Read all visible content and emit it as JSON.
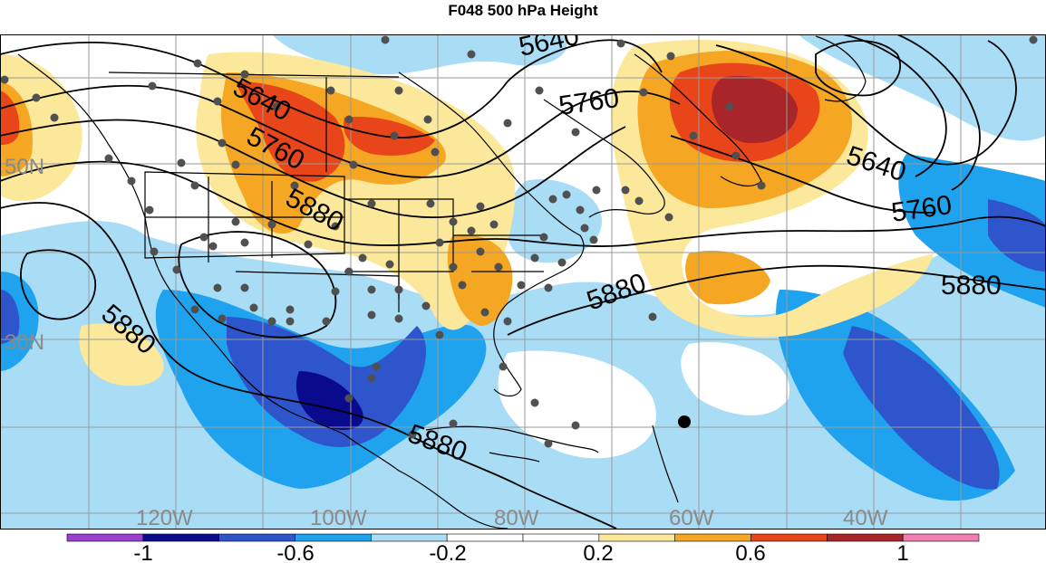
{
  "title": "F048 500 hPa Height",
  "contour_labels": {
    "c5640": "5640",
    "c5760": "5760",
    "c5880": "5880"
  },
  "lat_labels": [
    "50N",
    "30N"
  ],
  "lon_labels": [
    "120W",
    "100W",
    "80W",
    "60W",
    "40W"
  ],
  "colorbar": {
    "labels": [
      "-1",
      "-0.6",
      "-0.2",
      "0.2",
      "0.6",
      "1"
    ],
    "colors": [
      "#9b3fd1",
      "#0a0a8c",
      "#2e55cc",
      "#1fa3ee",
      "#a9dcf5",
      "#ffffff",
      "#ffffff",
      "#fbe89a",
      "#f5a623",
      "#e8461a",
      "#a8252a",
      "#f07fb0"
    ]
  }
}
